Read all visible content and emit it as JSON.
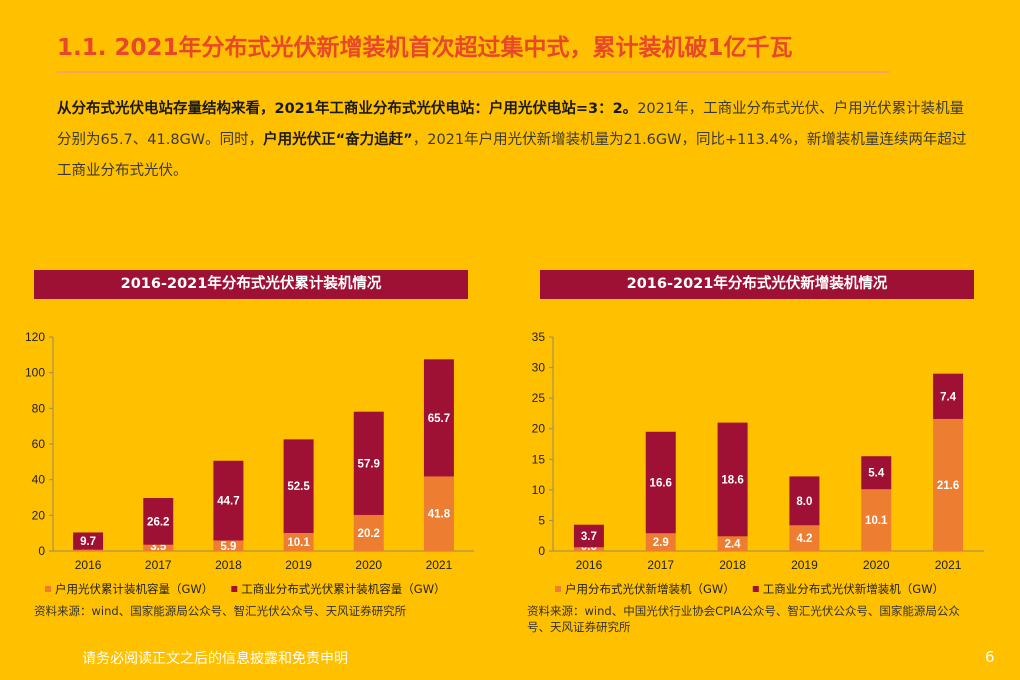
{
  "slide": {
    "title": "1.1. 2021年分布式光伏新增装机首次超过集中式，累计装机破1亿千瓦",
    "para_bold_1": "从分布式光伏电站存量结构来看，2021年工商业分布式光伏电站：户用光伏电站=3：2。",
    "para_text_1": "2021年，工商业分布式光伏、户用光伏累计装机量分别为65.7、41.8GW。同时，",
    "para_bold_2": "户用光伏正“奋力追赶”",
    "para_text_2": "，2021年户用光伏新增装机量为21.6GW，同比+113.4%，新增装机量连续两年超过工商业分布式光伏。",
    "footer": "请务必阅读正文之后的信息披露和免责申明",
    "page_number": "6"
  },
  "chart_data": [
    {
      "type": "bar",
      "stacked": true,
      "title": "2016-2021年分布式光伏累计装机情况",
      "categories": [
        "2016",
        "2017",
        "2018",
        "2019",
        "2020",
        "2021"
      ],
      "series": [
        {
          "name": "户用光伏累计装机容量（GW）",
          "color": "#ED7D31",
          "values": [
            0.7,
            3.5,
            5.9,
            10.1,
            20.2,
            41.8
          ]
        },
        {
          "name": "工商业分布式光伏累计装机容量（GW）",
          "color": "#9E1034",
          "values": [
            9.7,
            26.2,
            44.7,
            52.5,
            57.9,
            65.7
          ]
        }
      ],
      "ylim": [
        0,
        120
      ],
      "yticks": [
        0,
        20,
        40,
        60,
        80,
        100,
        120
      ],
      "legend": "bottom",
      "source": "资料来源：wind、国家能源局公众号、智汇光伏公众号、天风证券研究所"
    },
    {
      "type": "bar",
      "stacked": true,
      "title": "2016-2021年分布式光伏新增装机情况",
      "categories": [
        "2016",
        "2017",
        "2018",
        "2019",
        "2020",
        "2021"
      ],
      "series": [
        {
          "name": "户用分布式光伏新增装机（GW）",
          "color": "#ED7D31",
          "values": [
            0.6,
            2.9,
            2.4,
            4.2,
            10.1,
            21.6
          ]
        },
        {
          "name": "工商业分布式光伏新增装机（GW）",
          "color": "#9E1034",
          "values": [
            3.7,
            16.6,
            18.6,
            8.0,
            5.4,
            7.4
          ]
        }
      ],
      "ylim": [
        0,
        35
      ],
      "yticks": [
        0,
        5,
        10,
        15,
        20,
        25,
        30,
        35
      ],
      "legend": "bottom",
      "source": "资料来源：wind、中国光伏行业协会CPIA公众号、智汇光伏公众号、国家能源局公众号、天风证券研究所"
    }
  ]
}
